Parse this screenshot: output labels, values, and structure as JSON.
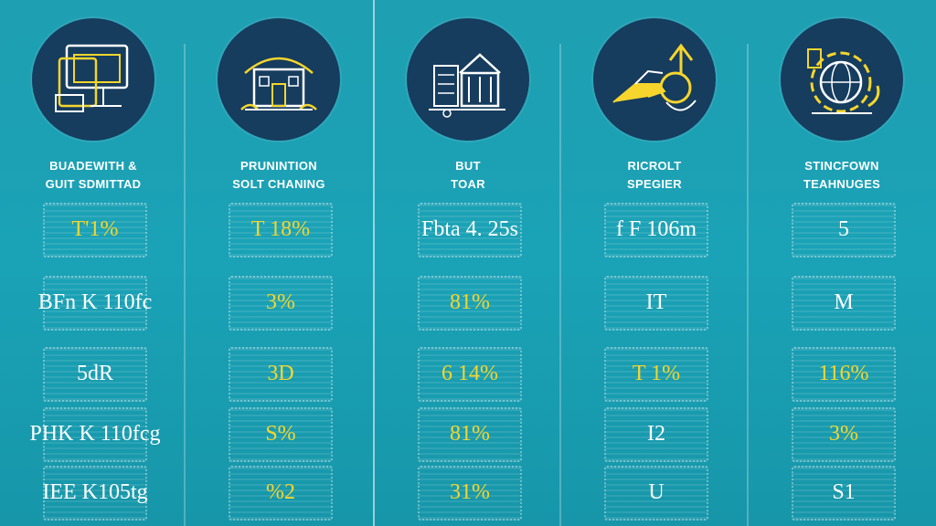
{
  "colors": {
    "background": "#1fa0b3",
    "circle": "#163c5e",
    "accent": "#f6d62c",
    "text": "#ffffff"
  },
  "columns": [
    {
      "icon": "computer-monitor-icon",
      "title": [
        "BUADEWITH &",
        "GUIT SDMITTAD"
      ],
      "values": [
        {
          "text": "T'1%",
          "color": "yellow"
        },
        {
          "text": "BFn K 110fc",
          "color": "white"
        },
        {
          "text": "5dR",
          "color": "white"
        },
        {
          "text": "PHK K 110fcg",
          "color": "white"
        },
        {
          "text": "IEE K105tg",
          "color": "white"
        }
      ]
    },
    {
      "icon": "house-icon",
      "title": [
        "PRUNINTION",
        "SOLT CHANING"
      ],
      "values": [
        {
          "text": "T 18%",
          "color": "yellow"
        },
        {
          "text": "3%",
          "color": "yellow"
        },
        {
          "text": "3D",
          "color": "yellow"
        },
        {
          "text": "S%",
          "color": "yellow"
        },
        {
          "text": "%2",
          "color": "yellow"
        }
      ]
    },
    {
      "icon": "building-icon",
      "title": [
        "BUT",
        "TOAR"
      ],
      "values": [
        {
          "text": "Fbta 4. 25s",
          "color": "white"
        },
        {
          "text": "81%",
          "color": "yellow"
        },
        {
          "text": "6 14%",
          "color": "yellow"
        },
        {
          "text": "81%",
          "color": "yellow"
        },
        {
          "text": "31%",
          "color": "yellow"
        }
      ]
    },
    {
      "icon": "hand-key-icon",
      "title": [
        "RICROLT",
        "SPEGIER"
      ],
      "values": [
        {
          "text": "f F 106m",
          "color": "white"
        },
        {
          "text": "IT",
          "color": "white"
        },
        {
          "text": "T 1%",
          "color": "yellow"
        },
        {
          "text": "I2",
          "color": "white"
        },
        {
          "text": "U",
          "color": "white"
        }
      ]
    },
    {
      "icon": "gear-globe-icon",
      "title": [
        "STINCFOWN",
        "TEAHNUGES"
      ],
      "values": [
        {
          "text": "5",
          "color": "white"
        },
        {
          "text": "M",
          "color": "white"
        },
        {
          "text": "116%",
          "color": "yellow"
        },
        {
          "text": "3%",
          "color": "yellow"
        },
        {
          "text": "S1",
          "color": "white"
        }
      ]
    }
  ]
}
